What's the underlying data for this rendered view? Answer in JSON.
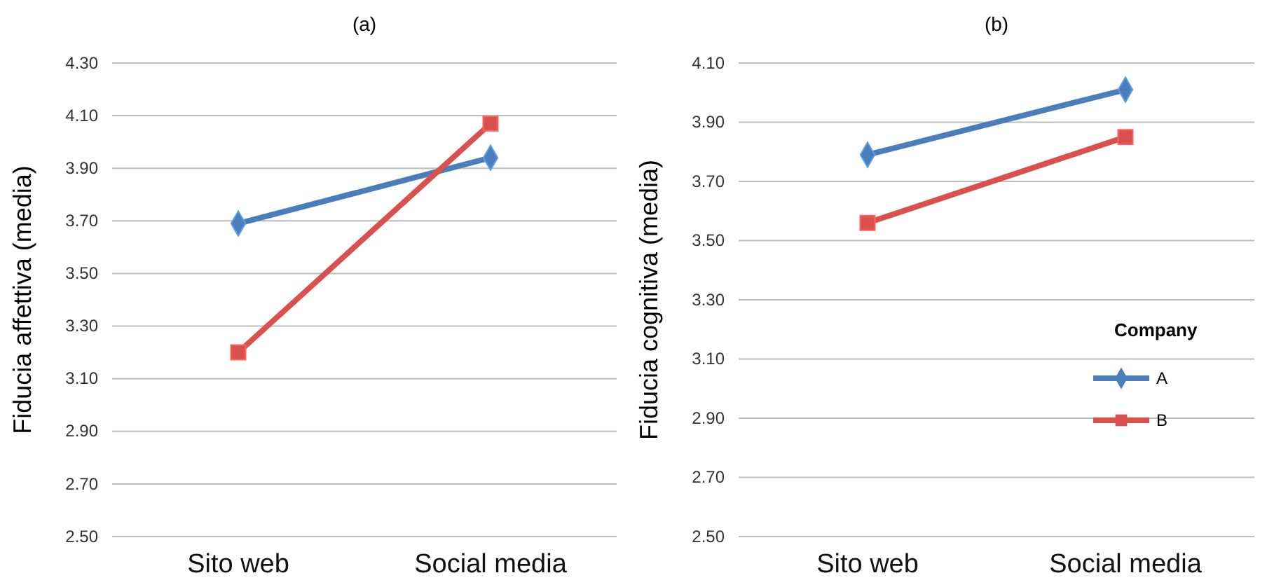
{
  "chart_data": [
    {
      "type": "line",
      "title": "(a)",
      "ylabel": "Fiducia affettiva (media)",
      "categories": [
        "Sito web",
        "Social media"
      ],
      "ylim": [
        2.5,
        4.3
      ],
      "yticks": [
        {
          "value": 2.5,
          "label": "2.50"
        },
        {
          "value": 2.7,
          "label": "2.70"
        },
        {
          "value": 2.9,
          "label": "2.90"
        },
        {
          "value": 3.1,
          "label": "3.10"
        },
        {
          "value": 3.3,
          "label": "3.30"
        },
        {
          "value": 3.5,
          "label": "3.50"
        },
        {
          "value": 3.7,
          "label": "3.70"
        },
        {
          "value": 3.9,
          "label": "3.90"
        },
        {
          "value": 4.1,
          "label": "4.10"
        },
        {
          "value": 4.3,
          "label": "4.30"
        }
      ],
      "grid": "y",
      "series": [
        {
          "color": "#4a7ebb",
          "marker": "diamond",
          "values": [
            3.69,
            3.94
          ]
        },
        {
          "color": "#d9504e",
          "marker": "square",
          "values": [
            3.2,
            4.07
          ]
        }
      ]
    },
    {
      "type": "line",
      "title": "(b)",
      "ylabel": "Fiducia cognitiva (media)",
      "categories": [
        "Sito web",
        "Social media"
      ],
      "ylim": [
        2.5,
        4.1
      ],
      "yticks": [
        {
          "value": 2.5,
          "label": "2.50"
        },
        {
          "value": 2.7,
          "label": "2.70"
        },
        {
          "value": 2.9,
          "label": "2.90"
        },
        {
          "value": 3.1,
          "label": "3.10"
        },
        {
          "value": 3.3,
          "label": "3.30"
        },
        {
          "value": 3.5,
          "label": "3.50"
        },
        {
          "value": 3.7,
          "label": "3.70"
        },
        {
          "value": 3.9,
          "label": "3.90"
        },
        {
          "value": 4.1,
          "label": "4.10"
        }
      ],
      "grid": "y",
      "legend": "right",
      "legend_title": "Company",
      "series": [
        {
          "name": "A",
          "color": "#4a7ebb",
          "marker": "diamond",
          "values": [
            3.79,
            4.01
          ]
        },
        {
          "name": "B",
          "color": "#d9504e",
          "marker": "square",
          "values": [
            3.56,
            3.85
          ]
        }
      ]
    }
  ]
}
